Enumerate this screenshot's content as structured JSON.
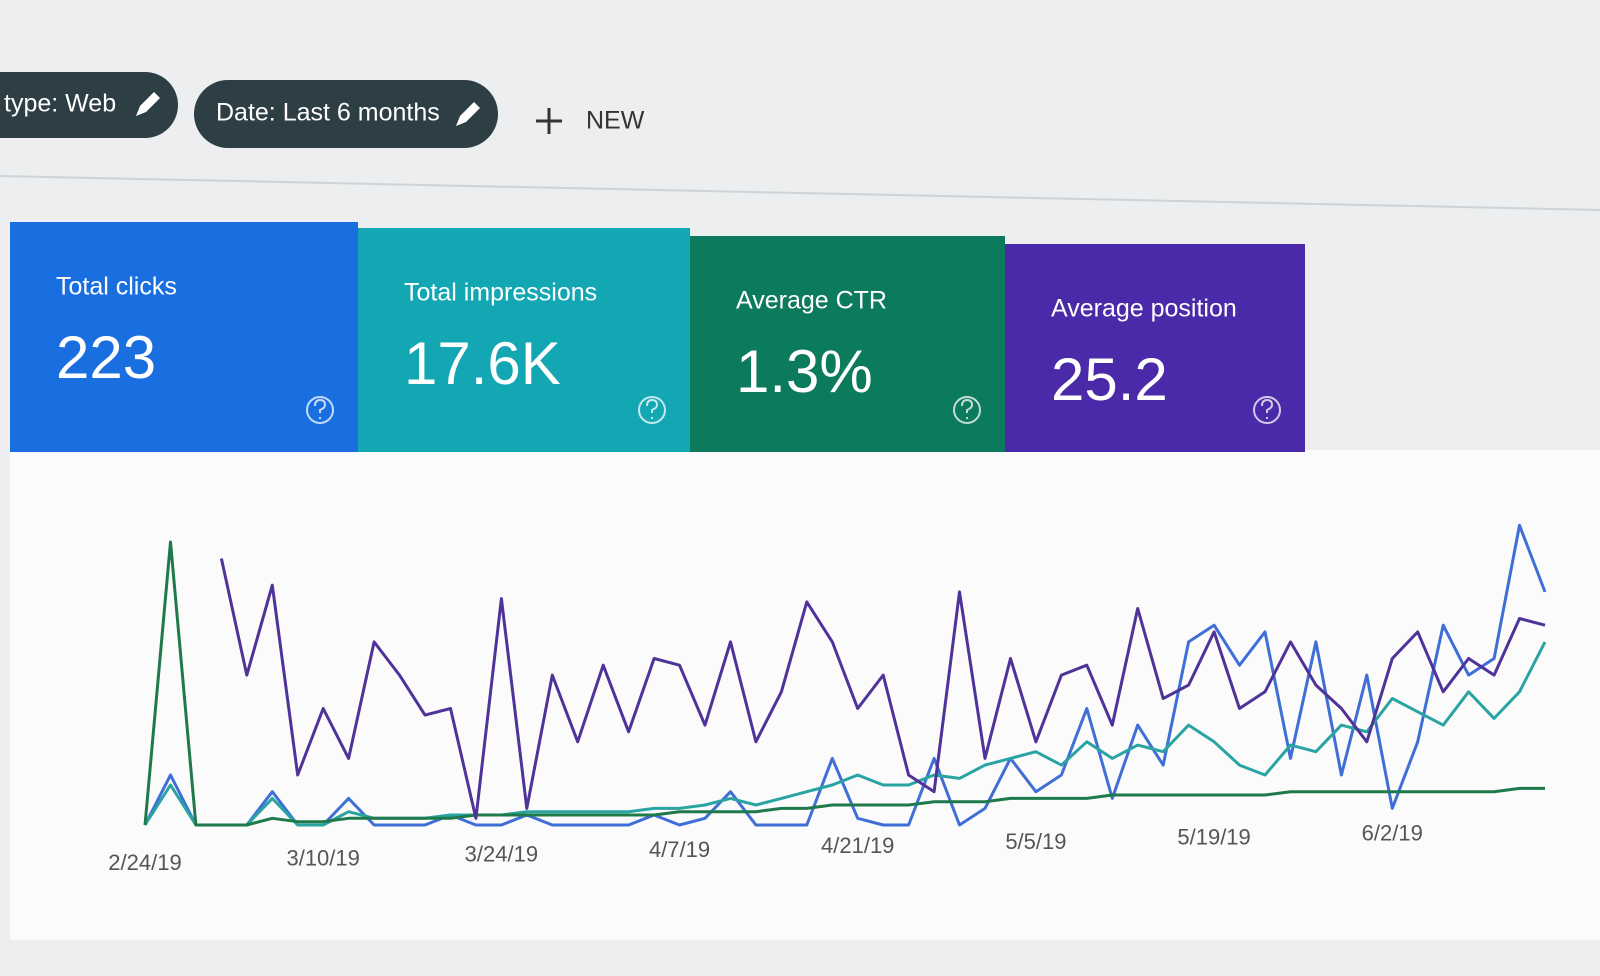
{
  "filters": {
    "chips": [
      "type: Web",
      "Date: Last 6 months"
    ],
    "new_button": "NEW"
  },
  "chart_data": {
    "type": "line",
    "categories": [
      "2/24/19",
      null,
      null,
      null,
      null,
      null,
      null,
      "3/10/19",
      null,
      null,
      null,
      null,
      null,
      null,
      "3/24/19",
      null,
      null,
      null,
      null,
      null,
      null,
      "4/7/19",
      null,
      null,
      null,
      null,
      null,
      null,
      "4/21/19",
      null,
      null,
      null,
      null,
      null,
      null,
      "5/5/19",
      null,
      null,
      null,
      null,
      null,
      null,
      "5/19/19",
      null,
      null,
      null,
      null,
      null,
      null,
      "6/2/19",
      null,
      null,
      null,
      null,
      null,
      null
    ],
    "ylim": [
      0,
      100
    ],
    "series": [
      {
        "name": "Total clicks",
        "total": 223,
        "card_color": "#1a6fe0",
        "color": "#3f6fd6",
        "values": [
          0,
          15,
          0,
          0,
          0,
          10,
          0,
          0,
          8,
          0,
          0,
          0,
          3,
          0,
          0,
          3,
          0,
          0,
          0,
          0,
          3,
          0,
          2,
          10,
          0,
          0,
          0,
          20,
          2,
          0,
          0,
          20,
          0,
          5,
          20,
          10,
          15,
          35,
          8,
          30,
          18,
          55,
          60,
          48,
          58,
          20,
          55,
          15,
          45,
          5,
          25,
          60,
          45,
          50,
          90,
          70
        ]
      },
      {
        "name": "Total impressions",
        "total": 17600,
        "total_label": "17.6K",
        "card_color": "#13a7b4",
        "color": "#2aa3a3",
        "values": [
          0,
          12,
          0,
          0,
          0,
          8,
          0,
          0,
          4,
          2,
          2,
          2,
          3,
          3,
          3,
          4,
          4,
          4,
          4,
          4,
          5,
          5,
          6,
          8,
          6,
          8,
          10,
          12,
          15,
          12,
          12,
          15,
          14,
          18,
          20,
          22,
          18,
          25,
          20,
          24,
          22,
          30,
          25,
          18,
          15,
          24,
          22,
          30,
          28,
          38,
          34,
          30,
          40,
          32,
          40,
          55
        ]
      },
      {
        "name": "Average CTR",
        "total": 1.3,
        "total_label": "1.3%",
        "card_color": "#0c7a5c",
        "color": "#1e7a4a",
        "values": [
          0,
          85,
          0,
          0,
          0,
          2,
          1,
          1,
          2,
          2,
          2,
          2,
          2,
          3,
          3,
          3,
          3,
          3,
          3,
          3,
          3,
          4,
          4,
          4,
          4,
          5,
          5,
          6,
          6,
          6,
          6,
          7,
          7,
          7,
          8,
          8,
          8,
          8,
          9,
          9,
          9,
          9,
          9,
          9,
          9,
          10,
          10,
          10,
          10,
          10,
          10,
          10,
          10,
          10,
          11,
          11
        ]
      },
      {
        "name": "Average position",
        "total": 25.2,
        "card_color": "#4a2aa8",
        "color": "#4f3399",
        "values": [
          null,
          null,
          null,
          80,
          45,
          72,
          15,
          35,
          20,
          55,
          45,
          33,
          35,
          2,
          68,
          5,
          45,
          25,
          48,
          28,
          50,
          48,
          30,
          55,
          25,
          40,
          67,
          55,
          35,
          45,
          15,
          10,
          70,
          20,
          50,
          25,
          45,
          48,
          30,
          65,
          38,
          42,
          58,
          35,
          40,
          55,
          42,
          35,
          25,
          50,
          58,
          40,
          50,
          45,
          62,
          60
        ]
      }
    ]
  }
}
